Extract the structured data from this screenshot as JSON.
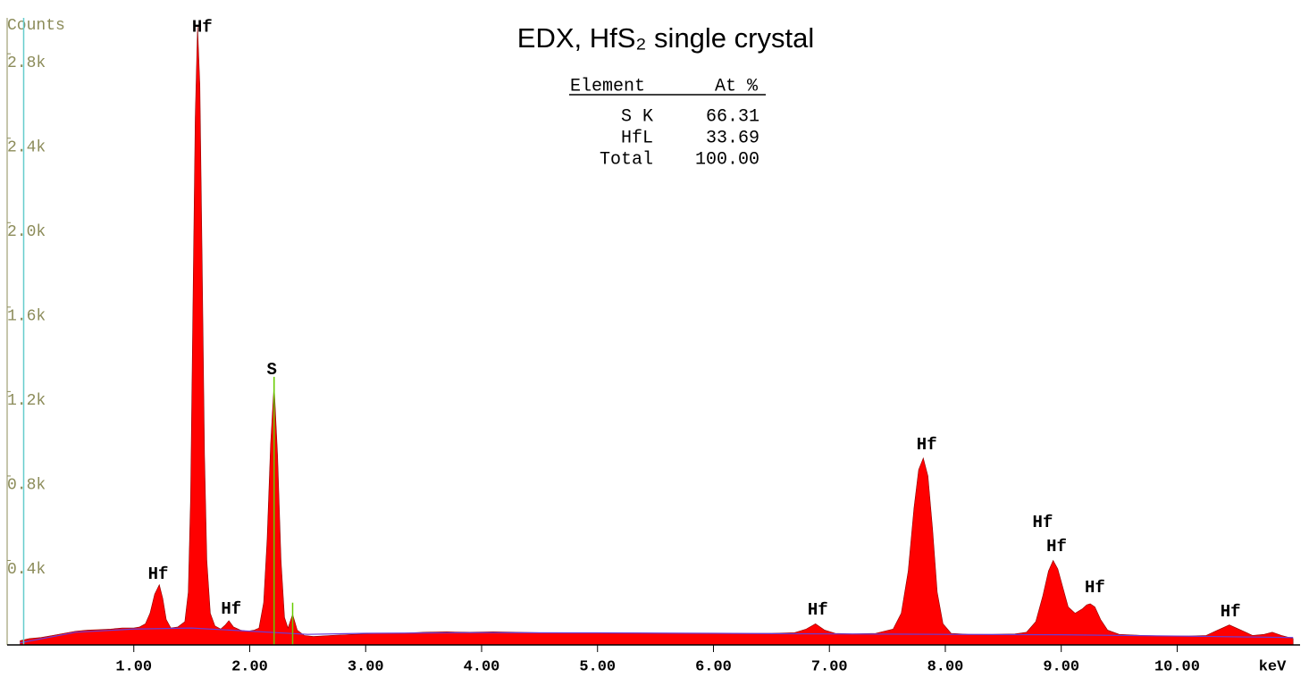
{
  "chart_data": {
    "type": "area",
    "title": "EDX, HfS₂ single crystal",
    "y_label": "Counts",
    "x_label": "keV",
    "xlim": [
      0,
      11.06
    ],
    "ylim": [
      0,
      2970
    ],
    "xticks": [
      {
        "value": 1,
        "label": "1.00"
      },
      {
        "value": 2,
        "label": "2.00"
      },
      {
        "value": 3,
        "label": "3.00"
      },
      {
        "value": 4,
        "label": "4.00"
      },
      {
        "value": 5,
        "label": "5.00"
      },
      {
        "value": 6,
        "label": "6.00"
      },
      {
        "value": 7,
        "label": "7.00"
      },
      {
        "value": 8,
        "label": "8.00"
      },
      {
        "value": 9,
        "label": "9.00"
      },
      {
        "value": 10,
        "label": "10.00"
      }
    ],
    "yticks": [
      {
        "value": 400,
        "label": "0.4k"
      },
      {
        "value": 800,
        "label": "0.8k"
      },
      {
        "value": 1200,
        "label": "1.2k"
      },
      {
        "value": 1600,
        "label": "1.6k"
      },
      {
        "value": 2000,
        "label": "2.0k"
      },
      {
        "value": 2400,
        "label": "2.4k"
      },
      {
        "value": 2800,
        "label": "2.8k"
      }
    ],
    "series": [
      {
        "color": "#ff0000",
        "fill": true,
        "x": [
          0.02,
          0.1,
          0.2,
          0.3,
          0.4,
          0.5,
          0.6,
          0.7,
          0.8,
          0.9,
          1.0,
          1.05,
          1.1,
          1.14,
          1.18,
          1.22,
          1.25,
          1.28,
          1.32,
          1.38,
          1.44,
          1.47,
          1.49,
          1.51,
          1.53,
          1.55,
          1.57,
          1.59,
          1.61,
          1.63,
          1.66,
          1.7,
          1.75,
          1.79,
          1.82,
          1.86,
          1.92,
          1.98,
          2.04,
          2.08,
          2.12,
          2.15,
          2.18,
          2.21,
          2.24,
          2.27,
          2.3,
          2.33,
          2.37,
          2.41,
          2.47,
          2.55,
          2.7,
          2.9,
          3.1,
          3.3,
          3.5,
          3.7,
          3.9,
          4.1,
          4.3,
          4.5,
          4.7,
          4.9,
          5.1,
          5.3,
          5.5,
          5.7,
          5.9,
          6.1,
          6.3,
          6.5,
          6.7,
          6.8,
          6.88,
          6.96,
          7.05,
          7.2,
          7.4,
          7.55,
          7.62,
          7.68,
          7.73,
          7.77,
          7.81,
          7.85,
          7.89,
          7.93,
          7.98,
          8.05,
          8.2,
          8.4,
          8.6,
          8.7,
          8.78,
          8.84,
          8.89,
          8.93,
          8.97,
          9.01,
          9.06,
          9.12,
          9.18,
          9.22,
          9.25,
          9.29,
          9.34,
          9.4,
          9.5,
          9.7,
          9.9,
          10.1,
          10.25,
          10.35,
          10.45,
          10.55,
          10.65,
          10.75,
          10.82,
          10.9,
          11.0
        ],
        "values": [
          20,
          30,
          35,
          45,
          55,
          65,
          70,
          72,
          75,
          80,
          80,
          85,
          100,
          150,
          240,
          285,
          220,
          120,
          80,
          85,
          110,
          250,
          700,
          1600,
          2500,
          2930,
          2650,
          1800,
          900,
          400,
          150,
          90,
          75,
          95,
          115,
          85,
          70,
          65,
          70,
          80,
          200,
          500,
          950,
          1235,
          900,
          400,
          130,
          80,
          145,
          70,
          45,
          40,
          45,
          50,
          55,
          55,
          60,
          62,
          60,
          62,
          60,
          58,
          58,
          57,
          56,
          57,
          56,
          55,
          56,
          55,
          54,
          55,
          58,
          75,
          100,
          70,
          55,
          52,
          55,
          75,
          150,
          350,
          650,
          830,
          885,
          800,
          550,
          250,
          100,
          55,
          50,
          50,
          52,
          60,
          110,
          230,
          350,
          400,
          360,
          280,
          180,
          150,
          170,
          190,
          195,
          180,
          120,
          70,
          50,
          45,
          42,
          42,
          45,
          70,
          95,
          70,
          45,
          50,
          60,
          45,
          30
        ]
      },
      {
        "color": "#6a3cd6",
        "fill": false,
        "x": [
          0.02,
          0.5,
          1.0,
          1.5,
          2.0,
          2.5,
          3,
          4,
          5,
          6,
          7,
          8,
          9,
          10,
          11
        ],
        "values": [
          10,
          60,
          75,
          80,
          65,
          50,
          55,
          58,
          57,
          55,
          52,
          50,
          48,
          42,
          35
        ]
      }
    ],
    "markers": [
      {
        "x": 0.05,
        "y": 2970,
        "color": "#66cccc"
      },
      {
        "x": 2.21,
        "y": 1270,
        "color": "#66cc00"
      },
      {
        "x": 2.37,
        "y": 200,
        "color": "#66cc00"
      }
    ],
    "annotations": [
      {
        "text": "Hf",
        "x": 1.21,
        "y": 334
      },
      {
        "text": "Hf",
        "x": 1.59,
        "y": 2925
      },
      {
        "text": "Hf",
        "x": 1.84,
        "y": 169
      },
      {
        "text": "S",
        "x": 2.19,
        "y": 1304
      },
      {
        "text": "Hf",
        "x": 6.9,
        "y": 165
      },
      {
        "text": "Hf",
        "x": 7.84,
        "y": 948
      },
      {
        "text": "Hf",
        "x": 8.84,
        "y": 580
      },
      {
        "text": "Hf",
        "x": 8.96,
        "y": 466
      },
      {
        "text": "Hf",
        "x": 9.29,
        "y": 271
      },
      {
        "text": "Hf",
        "x": 10.46,
        "y": 157
      }
    ],
    "table": {
      "header": [
        "Element",
        "At %"
      ],
      "rows": [
        [
          "S K",
          "66.31"
        ],
        [
          "HfL",
          "33.69"
        ],
        [
          "Total",
          "100.00"
        ]
      ]
    }
  }
}
